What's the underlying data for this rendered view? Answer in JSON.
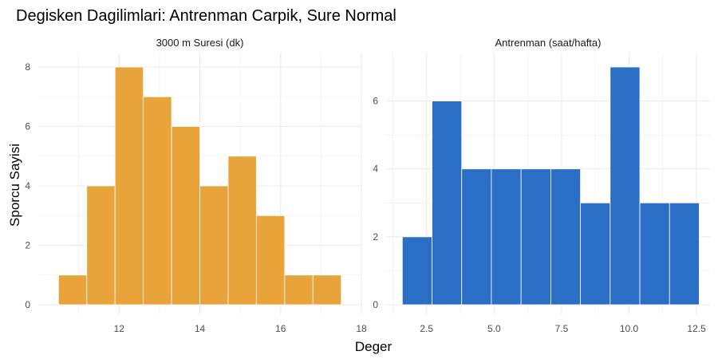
{
  "title": "Degisken Dagilimlari: Antrenman Carpik, Sure Normal",
  "xlabel": "Deger",
  "ylabel": "Sporcu Sayisi",
  "colors": {
    "panel_bg": "#ffffff",
    "grid": "#ebebeb",
    "text": "#4d4d4d",
    "bar_edge": "#ffffff"
  },
  "chart_data": [
    {
      "type": "bar",
      "title": "3000 m Suresi (dk)",
      "color": "#E8A33B",
      "bins": [
        {
          "x0": 10.5,
          "x1": 11.2,
          "count": 1
        },
        {
          "x0": 11.2,
          "x1": 11.9,
          "count": 4
        },
        {
          "x0": 11.9,
          "x1": 12.6,
          "count": 8
        },
        {
          "x0": 12.6,
          "x1": 13.3,
          "count": 7
        },
        {
          "x0": 13.3,
          "x1": 14.0,
          "count": 6
        },
        {
          "x0": 14.0,
          "x1": 14.7,
          "count": 4
        },
        {
          "x0": 14.7,
          "x1": 15.4,
          "count": 5
        },
        {
          "x0": 15.4,
          "x1": 16.1,
          "count": 3
        },
        {
          "x0": 16.1,
          "x1": 16.8,
          "count": 1
        },
        {
          "x0": 16.8,
          "x1": 17.5,
          "count": 1
        }
      ],
      "xlim": [
        10.0,
        18.0
      ],
      "ylim": [
        0,
        8
      ],
      "xticks": [
        12,
        14,
        16,
        18
      ],
      "xtick_labels": [
        "12",
        "14",
        "16",
        "18"
      ],
      "yticks": [
        0,
        2,
        4,
        6,
        8
      ],
      "ytick_labels": [
        "0",
        "2",
        "4",
        "6",
        "8"
      ]
    },
    {
      "type": "bar",
      "title": "Antrenman (saat/hafta)",
      "color": "#2A6EC6",
      "bins": [
        {
          "x0": 1.6,
          "x1": 2.7,
          "count": 2
        },
        {
          "x0": 2.7,
          "x1": 3.8,
          "count": 6
        },
        {
          "x0": 3.8,
          "x1": 4.9,
          "count": 4
        },
        {
          "x0": 4.9,
          "x1": 6.0,
          "count": 4
        },
        {
          "x0": 6.0,
          "x1": 7.1,
          "count": 4
        },
        {
          "x0": 7.1,
          "x1": 8.2,
          "count": 4
        },
        {
          "x0": 8.2,
          "x1": 9.3,
          "count": 3
        },
        {
          "x0": 9.3,
          "x1": 10.4,
          "count": 7
        },
        {
          "x0": 10.4,
          "x1": 11.5,
          "count": 3
        },
        {
          "x0": 11.5,
          "x1": 12.6,
          "count": 3
        }
      ],
      "xlim": [
        1.0,
        13.0
      ],
      "ylim": [
        0,
        7
      ],
      "xticks": [
        2.5,
        5.0,
        7.5,
        10.0,
        12.5
      ],
      "xtick_labels": [
        "2.5",
        "5.0",
        "7.5",
        "10.0",
        "12.5"
      ],
      "yticks": [
        0,
        2,
        4,
        6
      ],
      "ytick_labels": [
        "0",
        "2",
        "4",
        "6"
      ]
    }
  ]
}
